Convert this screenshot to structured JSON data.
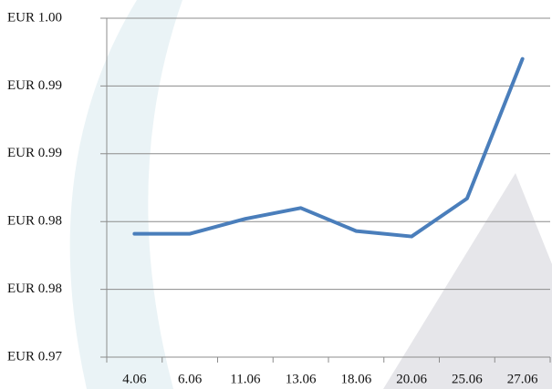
{
  "chart_data": {
    "type": "line",
    "categories": [
      "4.06",
      "6.06",
      "11.06",
      "13.06",
      "18.06",
      "20.06",
      "25.06",
      "27.06"
    ],
    "values": [
      0.9841,
      0.9841,
      0.9852,
      0.986,
      0.9843,
      0.9839,
      0.9867,
      0.997
    ],
    "color": "#4a7ebb",
    "ylim": [
      0.975,
      1.0
    ],
    "yticks": [
      {
        "value": 0.975,
        "label": "EUR 0.97"
      },
      {
        "value": 0.98,
        "label": "EUR 0.98"
      },
      {
        "value": 0.985,
        "label": "EUR 0.98"
      },
      {
        "value": 0.99,
        "label": "EUR 0.99"
      },
      {
        "value": 0.995,
        "label": "EUR 0.99"
      },
      {
        "value": 1.0,
        "label": "EUR 1.00"
      }
    ],
    "grid": true
  }
}
